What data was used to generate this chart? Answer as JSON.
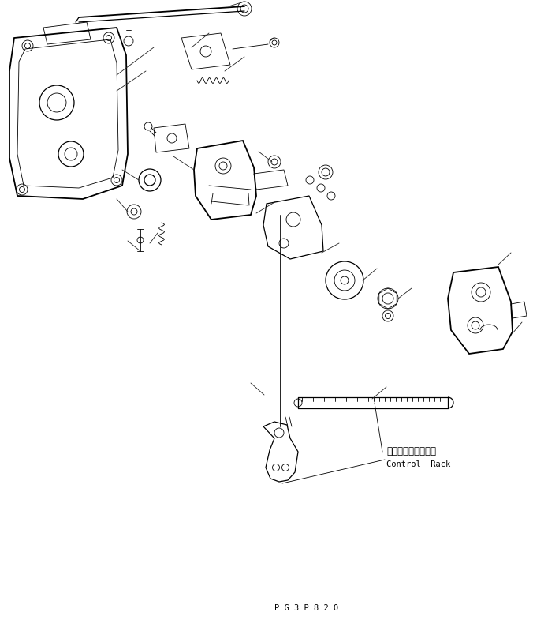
{
  "bg_color": "#ffffff",
  "line_color": "#000000",
  "label_japanese": "コントロールラック",
  "label_english": "Control  Rack",
  "page_code": "P G 3 P 8 2 0",
  "fig_width": 6.95,
  "fig_height": 7.99,
  "dpi": 100
}
